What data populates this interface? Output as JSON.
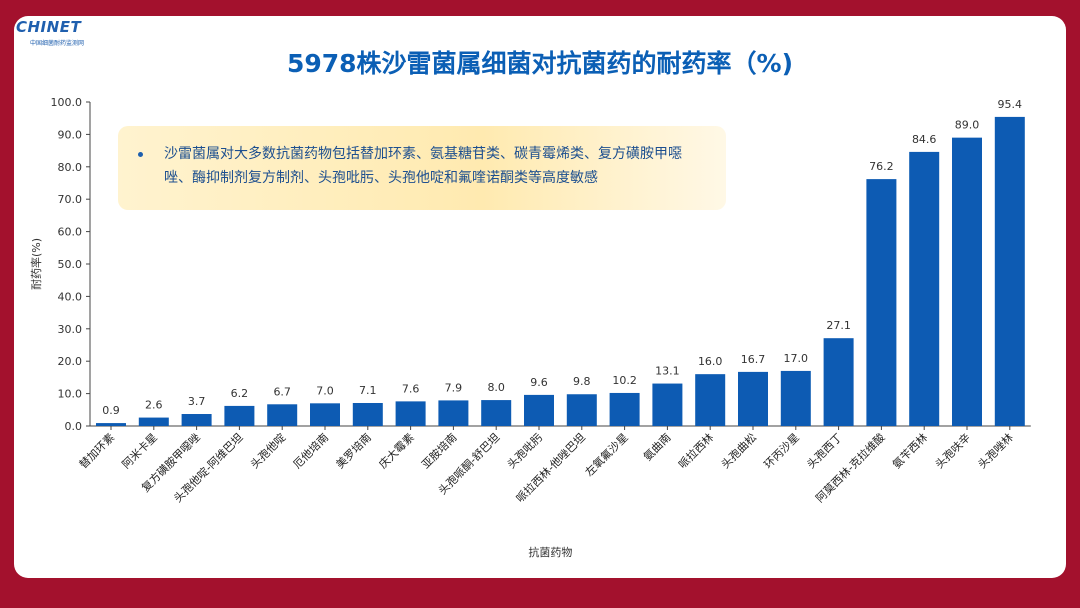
{
  "logo": {
    "text": "CHINET",
    "sub": "中国细菌耐药监测网"
  },
  "note": {
    "text": "沙雷菌属对大多数抗菌药物包括替加环素、氨基糖苷类、碳青霉烯类、复方磺胺甲噁唑、酶抑制剂复方制剂、头孢吡肟、头孢他啶和氟喹诺酮类等高度敏感"
  },
  "colors": {
    "bar": "#0d5bb3",
    "background": "#a3112d",
    "title": "#0b5fb5"
  },
  "chart_data": {
    "type": "bar",
    "title": "5978株沙雷菌属细菌对抗菌药的耐药率（%)",
    "xlabel": "抗菌药物",
    "ylabel": "耐药率(%)",
    "ylim": [
      0,
      100
    ],
    "yticks": [
      "0.0",
      "10.0",
      "20.0",
      "30.0",
      "40.0",
      "50.0",
      "60.0",
      "70.0",
      "80.0",
      "90.0",
      "100.0"
    ],
    "grid": false,
    "categories": [
      "替加环素",
      "阿米卡星",
      "复方磺胺甲噁唑",
      "头孢他啶-阿维巴坦",
      "头孢他啶",
      "厄他培南",
      "美罗培南",
      "庆大霉素",
      "亚胺培南",
      "头孢哌酮-舒巴坦",
      "头孢吡肟",
      "哌拉西林-他唑巴坦",
      "左氧氟沙星",
      "氨曲南",
      "哌拉西林",
      "头孢曲松",
      "环丙沙星",
      "头孢西丁",
      "阿莫西林-克拉维酸",
      "氨苄西林",
      "头孢呋辛",
      "头孢唑林"
    ],
    "values": [
      0.9,
      2.6,
      3.7,
      6.2,
      6.7,
      7.0,
      7.1,
      7.6,
      7.9,
      8.0,
      9.6,
      9.8,
      10.2,
      13.1,
      16.0,
      16.7,
      17.0,
      27.1,
      76.2,
      84.6,
      89.0,
      95.4
    ],
    "value_labels": [
      "0.9",
      "2.6",
      "3.7",
      "6.2",
      "6.7",
      "7.0",
      "7.1",
      "7.6",
      "7.9",
      "8.0",
      "9.6",
      "9.8",
      "10.2",
      "13.1",
      "16.0",
      "16.7",
      "17.0",
      "27.1",
      "76.2",
      "84.6",
      "89.0",
      "95.4"
    ]
  }
}
